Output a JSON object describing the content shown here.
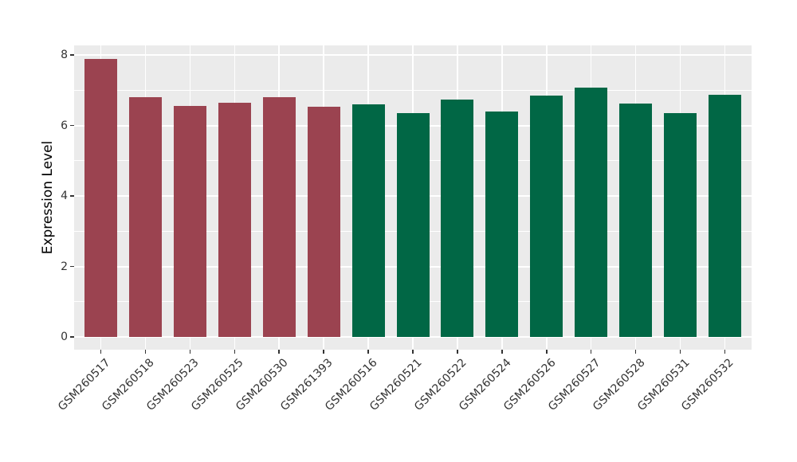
{
  "chart_data": {
    "type": "bar",
    "title": "",
    "xlabel": "",
    "ylabel": "Expression Level",
    "ylim": [
      0,
      8.3
    ],
    "yticks": [
      0,
      2,
      4,
      6,
      8
    ],
    "yticks_minor": [
      1,
      3,
      5,
      7
    ],
    "grid": true,
    "legend": "none",
    "categories": [
      "GSM260517",
      "GSM260518",
      "GSM260523",
      "GSM260525",
      "GSM260530",
      "GSM261393",
      "GSM260516",
      "GSM260521",
      "GSM260522",
      "GSM260524",
      "GSM260526",
      "GSM260527",
      "GSM260528",
      "GSM260531",
      "GSM260532"
    ],
    "values": [
      7.88,
      6.8,
      6.55,
      6.64,
      6.8,
      6.52,
      6.6,
      6.35,
      6.74,
      6.4,
      6.84,
      7.08,
      6.62,
      6.35,
      6.87
    ],
    "bar_colors": [
      "#9B4350",
      "#9B4350",
      "#9B4350",
      "#9B4350",
      "#9B4350",
      "#9B4350",
      "#016745",
      "#016745",
      "#016745",
      "#016745",
      "#016745",
      "#016745",
      "#016745",
      "#016745",
      "#016745"
    ],
    "colors": {
      "group_red": "#9B4350",
      "group_green": "#016745",
      "panel_background": "#EBEBEB",
      "gridline": "#FFFFFF",
      "tick_text": "#333333",
      "axis_title_text": "#000000"
    }
  }
}
